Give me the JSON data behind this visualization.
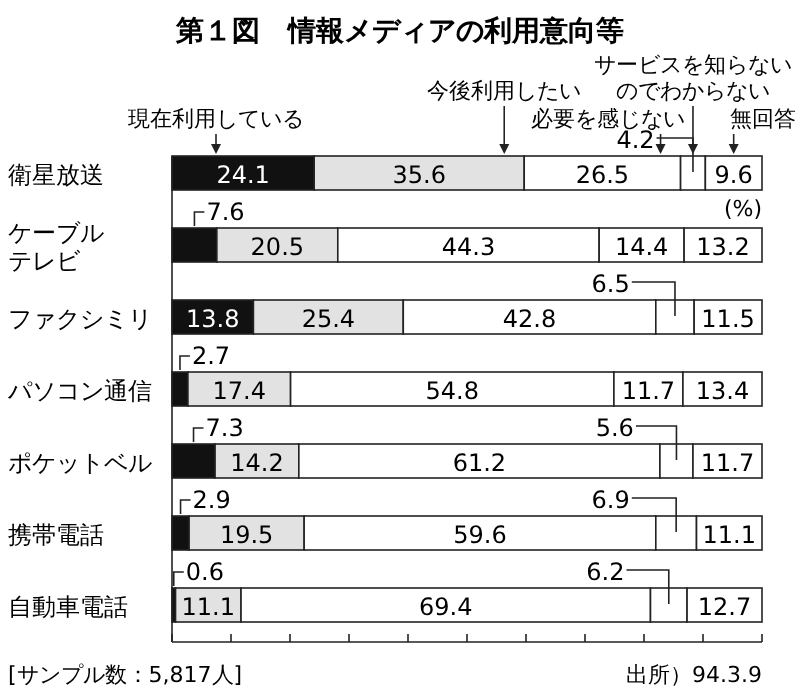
{
  "chart_data": {
    "type": "bar",
    "orientation": "horizontal",
    "stacked": true,
    "title": "第１図　情報メディアの利用意向等",
    "categories": [
      "衛星放送",
      "ケーブルテレビ",
      "ファクシミリ",
      "パソコン通信",
      "ポケットベル",
      "携帯電話",
      "自動車電話"
    ],
    "series": [
      {
        "name": "現在利用している",
        "color": "#111111",
        "values": [
          24.1,
          7.6,
          13.8,
          2.7,
          7.3,
          2.9,
          0.6
        ]
      },
      {
        "name": "今後利用したい",
        "color": "#e2e2e2",
        "values": [
          35.6,
          20.5,
          25.4,
          17.4,
          14.2,
          19.5,
          11.1
        ]
      },
      {
        "name": "必要を感じない",
        "color": "#ffffff",
        "values": [
          26.5,
          44.3,
          42.8,
          54.8,
          61.2,
          59.6,
          69.4
        ]
      },
      {
        "name": "サービスを知らないのでわからない",
        "color": "#ffffff",
        "values": [
          4.2,
          14.4,
          6.5,
          11.7,
          5.6,
          6.9,
          6.2
        ]
      },
      {
        "name": "無回答",
        "color": "#ffffff",
        "values": [
          9.6,
          13.2,
          11.5,
          13.4,
          11.7,
          11.1,
          12.7
        ]
      }
    ],
    "xlim": [
      0,
      100
    ],
    "xticks": [
      {
        "value": 0,
        "label": null
      },
      {
        "value": 10,
        "label": null
      },
      {
        "value": 20,
        "label": null
      },
      {
        "value": 30,
        "label": null
      },
      {
        "value": 40,
        "label": null
      },
      {
        "value": 50,
        "label": null
      },
      {
        "value": 60,
        "label": null
      },
      {
        "value": 70,
        "label": null
      },
      {
        "value": 80,
        "label": null
      },
      {
        "value": 90,
        "label": null
      },
      {
        "value": 100,
        "label": null
      }
    ],
    "data_labels": true,
    "legend": "top",
    "annotations": [
      "(%)",
      "[サンプル数：5,817人]",
      "出所）94.3.9"
    ]
  }
}
